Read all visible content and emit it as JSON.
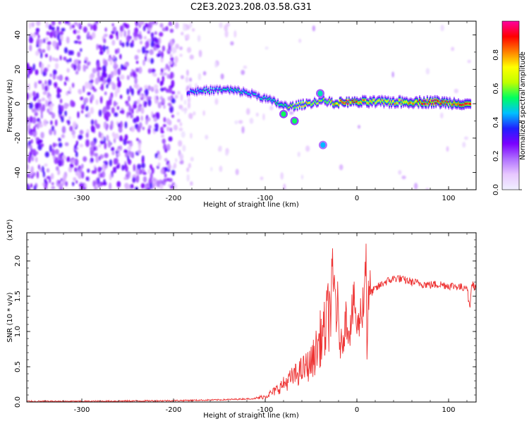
{
  "figure": {
    "title": "C2E3.2023.208.03.58.G31"
  },
  "chart_data": [
    {
      "type": "heatmap",
      "title": "C2E3.2023.208.03.58.G31",
      "xlabel": "Height of straight line (km)",
      "ylabel": "Frequency (Hz)",
      "xlim": [
        -360,
        130
      ],
      "ylim": [
        -50,
        48
      ],
      "x_ticks": [
        -300,
        -200,
        -100,
        0,
        100
      ],
      "y_ticks": [
        -40,
        -20,
        0,
        20,
        40
      ],
      "grid": false,
      "colorbar": {
        "label": "Normalized spectral amplitude",
        "range": [
          0.0,
          1.0
        ],
        "ticks": [
          0.0,
          0.2,
          0.4,
          0.6,
          0.8
        ],
        "colormap": [
          "#f0f0ff",
          "#e8c8ff",
          "#b070ff",
          "#7a00ff",
          "#2020ff",
          "#00c0ff",
          "#00ff60",
          "#c0ff00",
          "#ffff00",
          "#ff8000",
          "#ff0000",
          "#ff00a0"
        ]
      },
      "signal_ridge": [
        {
          "x": -185,
          "y": 7,
          "amp": 0.35
        },
        {
          "x": -170,
          "y": 7.5,
          "amp": 0.45
        },
        {
          "x": -155,
          "y": 8,
          "amp": 0.4
        },
        {
          "x": -140,
          "y": 8,
          "amp": 0.45
        },
        {
          "x": -125,
          "y": 7,
          "amp": 0.45
        },
        {
          "x": -110,
          "y": 5,
          "amp": 0.4
        },
        {
          "x": -95,
          "y": 2,
          "amp": 0.45
        },
        {
          "x": -85,
          "y": 0,
          "amp": 0.5
        },
        {
          "x": -75,
          "y": -2,
          "amp": 0.5
        },
        {
          "x": -65,
          "y": -1,
          "amp": 0.6
        },
        {
          "x": -55,
          "y": 0,
          "amp": 0.65
        },
        {
          "x": -45,
          "y": 1,
          "amp": 0.6
        },
        {
          "x": -35,
          "y": 2,
          "amp": 0.55
        },
        {
          "x": -25,
          "y": 0,
          "amp": 0.7
        },
        {
          "x": -15,
          "y": 1,
          "amp": 0.8
        },
        {
          "x": -5,
          "y": 1,
          "amp": 0.75
        },
        {
          "x": 5,
          "y": 1,
          "amp": 0.7
        },
        {
          "x": 20,
          "y": 1,
          "amp": 0.65
        },
        {
          "x": 40,
          "y": 1,
          "amp": 0.65
        },
        {
          "x": 60,
          "y": 1,
          "amp": 0.7
        },
        {
          "x": 85,
          "y": 1,
          "amp": 0.8
        },
        {
          "x": 100,
          "y": 0.5,
          "amp": 0.7
        },
        {
          "x": 125,
          "y": 0,
          "amp": 0.8
        }
      ],
      "branches": [
        {
          "x": -80,
          "y": -6,
          "amp": 0.55
        },
        {
          "x": -68,
          "y": -10,
          "amp": 0.55
        },
        {
          "x": -40,
          "y": 6,
          "amp": 0.5
        },
        {
          "x": -37,
          "y": -24,
          "amp": 0.45
        }
      ]
    },
    {
      "type": "line",
      "xlabel": "Height of straight line (km)",
      "ylabel": "SNR (10 * v/v)",
      "y_multiplier": "(x10⁴)",
      "xlim": [
        -360,
        130
      ],
      "ylim": [
        0,
        2.4
      ],
      "x_ticks": [
        -300,
        -200,
        -100,
        0,
        100
      ],
      "y_ticks": [
        0.0,
        0.5,
        1.0,
        1.5,
        2.0
      ],
      "grid": false,
      "series": [
        {
          "color": "#ee3333",
          "x": [
            -360,
            -300,
            -200,
            -150,
            -110,
            -100,
            -90,
            -80,
            -70,
            -60,
            -50,
            -45,
            -40,
            -35,
            -30,
            -25,
            -22,
            -20,
            -18,
            -15,
            -12,
            -8,
            -5,
            -2,
            0,
            5,
            8,
            10,
            11,
            12,
            15,
            20,
            25,
            30,
            35,
            40,
            45,
            50,
            55,
            60,
            70,
            80,
            90,
            100,
            110,
            115,
            120,
            123,
            125,
            130
          ],
          "y": [
            0.01,
            0.01,
            0.02,
            0.03,
            0.05,
            0.08,
            0.15,
            0.25,
            0.35,
            0.45,
            0.55,
            0.7,
            0.9,
            1.0,
            1.3,
            1.6,
            1.4,
            1.0,
            0.8,
            0.9,
            1.2,
            1.0,
            1.3,
            1.4,
            1.0,
            1.3,
            1.5,
            2.35,
            0.6,
            1.4,
            1.55,
            1.6,
            1.65,
            1.7,
            1.72,
            1.75,
            1.76,
            1.73,
            1.72,
            1.7,
            1.68,
            1.66,
            1.67,
            1.65,
            1.64,
            1.62,
            1.66,
            1.3,
            1.7,
            1.6
          ]
        }
      ]
    }
  ]
}
